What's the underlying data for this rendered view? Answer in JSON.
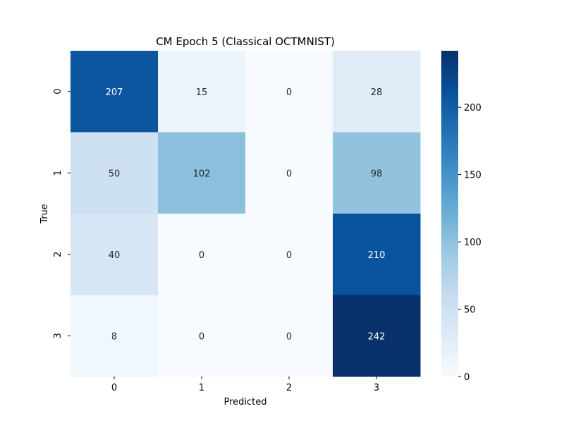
{
  "chart_data": {
    "type": "heatmap",
    "title": "CM Epoch 5 (Classical OCTMNIST)",
    "xlabel": "Predicted",
    "ylabel": "True",
    "x_categories": [
      "0",
      "1",
      "2",
      "3"
    ],
    "y_categories": [
      "0",
      "1",
      "2",
      "3"
    ],
    "values": [
      [
        207,
        15,
        0,
        28
      ],
      [
        50,
        102,
        0,
        98
      ],
      [
        40,
        0,
        0,
        210
      ],
      [
        8,
        0,
        0,
        242
      ]
    ],
    "colormap": "Blues",
    "vmin": 0,
    "vmax": 242,
    "colorbar_ticks": [
      0,
      50,
      100,
      150,
      200
    ],
    "colorbar_tick_labels": [
      "0",
      "50",
      "100",
      "150",
      "200"
    ]
  }
}
